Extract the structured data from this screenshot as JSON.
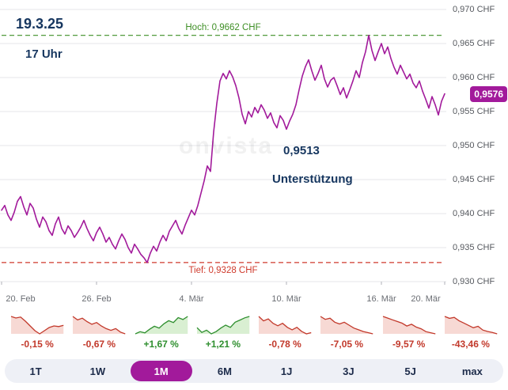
{
  "colors": {
    "line": "#a21a9b",
    "badge_bg": "#a21a9b",
    "high": "#3f8f26",
    "low": "#cf3a2c",
    "pos": "#2f8f2f",
    "neg": "#c2392b",
    "pos_fill": "#d9efd2",
    "neg_fill": "#f7d9d4",
    "navy": "#16365f",
    "active_tab_bg": "#a21a9b"
  },
  "chart_data": {
    "main": {
      "type": "line",
      "currency": "CHF",
      "ylim": [
        0.93,
        0.97
      ],
      "grid": true,
      "y_ticks": [
        {
          "value": 0.97,
          "label": "0,970 CHF"
        },
        {
          "value": 0.965,
          "label": "0,965 CHF"
        },
        {
          "value": 0.96,
          "label": "0,960 CHF"
        },
        {
          "value": 0.955,
          "label": "0,955 CHF"
        },
        {
          "value": 0.95,
          "label": "0,950 CHF"
        },
        {
          "value": 0.945,
          "label": "0,945 CHF"
        },
        {
          "value": 0.94,
          "label": "0,940 CHF"
        },
        {
          "value": 0.935,
          "label": "0,935 CHF"
        },
        {
          "value": 0.93,
          "label": "0,930 CHF"
        }
      ],
      "x_span_days": 28,
      "x_ticks": [
        {
          "day": 0,
          "label": "20. Feb"
        },
        {
          "day": 6,
          "label": "26. Feb"
        },
        {
          "day": 12,
          "label": "4. Mär"
        },
        {
          "day": 18,
          "label": "10. Mär"
        },
        {
          "day": 24,
          "label": "16. Mär"
        },
        {
          "day": 28,
          "label": "20. Mär"
        }
      ],
      "high": {
        "value": 0.9662,
        "label": "Hoch: 0,9662 CHF"
      },
      "low": {
        "value": 0.9328,
        "label": "Tief: 0,9328 CHF"
      },
      "last": {
        "value": 0.9576,
        "label": "0,9576"
      },
      "annotations": {
        "date": "19.3.25",
        "time": "17 Uhr",
        "support_value": "0,9513",
        "support_text": "Unterstützung",
        "watermark": "onvista"
      },
      "values": [
        0.9405,
        0.9412,
        0.9398,
        0.939,
        0.9402,
        0.9418,
        0.9425,
        0.941,
        0.9398,
        0.9415,
        0.9408,
        0.9392,
        0.938,
        0.9395,
        0.9388,
        0.9375,
        0.9368,
        0.9385,
        0.9395,
        0.9378,
        0.937,
        0.9382,
        0.9375,
        0.9365,
        0.9372,
        0.938,
        0.939,
        0.9378,
        0.9368,
        0.936,
        0.9372,
        0.938,
        0.937,
        0.9358,
        0.9365,
        0.9355,
        0.9348,
        0.936,
        0.937,
        0.9362,
        0.935,
        0.9342,
        0.9355,
        0.9348,
        0.934,
        0.9335,
        0.9328,
        0.9342,
        0.9352,
        0.9345,
        0.9358,
        0.9368,
        0.936,
        0.9374,
        0.9382,
        0.939,
        0.9378,
        0.937,
        0.9383,
        0.9394,
        0.9405,
        0.9398,
        0.9412,
        0.943,
        0.9448,
        0.947,
        0.9462,
        0.952,
        0.9562,
        0.9595,
        0.9606,
        0.9598,
        0.961,
        0.9601,
        0.9588,
        0.957,
        0.9546,
        0.9532,
        0.955,
        0.9542,
        0.9556,
        0.9548,
        0.956,
        0.9552,
        0.954,
        0.9548,
        0.9534,
        0.9526,
        0.9544,
        0.9537,
        0.9524,
        0.9536,
        0.9546,
        0.956,
        0.9582,
        0.9602,
        0.9616,
        0.9626,
        0.961,
        0.9596,
        0.9606,
        0.9618,
        0.9598,
        0.9586,
        0.9596,
        0.96,
        0.9588,
        0.9575,
        0.9585,
        0.957,
        0.9582,
        0.9595,
        0.961,
        0.96,
        0.9622,
        0.9638,
        0.9662,
        0.964,
        0.9625,
        0.9638,
        0.965,
        0.9635,
        0.9645,
        0.9628,
        0.9615,
        0.9605,
        0.9618,
        0.9608,
        0.9598,
        0.9605,
        0.9592,
        0.9585,
        0.9595,
        0.958,
        0.9568,
        0.9555,
        0.9572,
        0.956,
        0.9545,
        0.9565,
        0.9576
      ]
    },
    "sparklines": [
      {
        "range": "1T",
        "pct": "-0,15 %",
        "trend": "neg",
        "values": [
          8,
          7.5,
          7.8,
          6.5,
          5,
          3.5,
          2.5,
          3.5,
          4.5,
          5,
          4.8,
          5.2
        ]
      },
      {
        "range": "1W",
        "pct": "-0,67 %",
        "trend": "neg",
        "values": [
          8,
          7.2,
          7.6,
          6.8,
          6.2,
          6.6,
          5.8,
          5.2,
          4.8,
          5.2,
          4.4,
          4.0
        ]
      },
      {
        "range": "1M",
        "pct": "+1,67 %",
        "trend": "pos",
        "values": [
          2.5,
          3.2,
          2.8,
          4.0,
          5.0,
          4.4,
          5.8,
          6.8,
          6.2,
          7.8,
          7.2,
          8.2
        ]
      },
      {
        "range": "6M",
        "pct": "+1,21 %",
        "trend": "pos",
        "values": [
          4.5,
          3.2,
          3.8,
          2.8,
          3.4,
          4.4,
          5.2,
          4.6,
          6.0,
          6.6,
          7.2,
          7.6
        ]
      },
      {
        "range": "1J",
        "pct": "-0,78 %",
        "trend": "neg",
        "values": [
          7.5,
          6.4,
          6.9,
          5.8,
          5.2,
          5.8,
          4.8,
          4.2,
          4.8,
          3.8,
          3.2,
          3.5
        ]
      },
      {
        "range": "3J",
        "pct": "-7,05 %",
        "trend": "neg",
        "values": [
          8.2,
          7.2,
          7.6,
          6.2,
          5.6,
          6.2,
          5.2,
          4.2,
          3.6,
          3.0,
          2.6,
          2.2
        ]
      },
      {
        "range": "5J",
        "pct": "-9,57 %",
        "trend": "neg",
        "values": [
          8.4,
          7.8,
          7.2,
          6.6,
          6.0,
          5.0,
          5.6,
          4.6,
          4.0,
          3.0,
          2.6,
          2.2
        ]
      },
      {
        "range": "max",
        "pct": "-43,46 %",
        "trend": "neg",
        "values": [
          9.0,
          8.2,
          8.6,
          7.2,
          6.2,
          5.2,
          4.2,
          4.8,
          3.2,
          2.6,
          2.2,
          1.6
        ]
      }
    ]
  },
  "ranges": {
    "tabs": [
      "1T",
      "1W",
      "1M",
      "6M",
      "1J",
      "3J",
      "5J",
      "max"
    ],
    "active": "1M"
  }
}
